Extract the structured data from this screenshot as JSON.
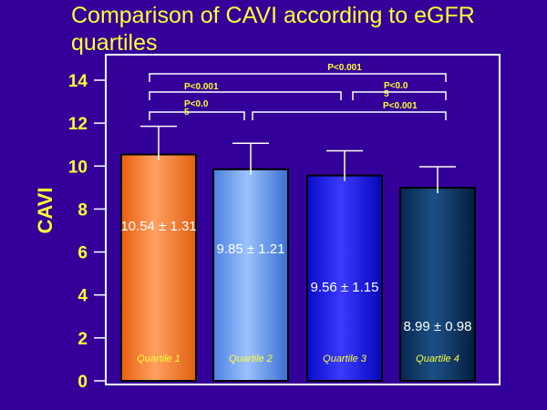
{
  "chart_data": {
    "type": "bar",
    "title": "Comparison of CAVI according to eGFR quartiles",
    "ylabel": "CAVI",
    "xlabel": "",
    "ylim": [
      0,
      14
    ],
    "yticks": [
      "0",
      "2",
      "4",
      "6",
      "8",
      "10",
      "12",
      "14"
    ],
    "categories": [
      "Quartile 1",
      "Quartile 2",
      "Quartile 3",
      "Quartile 4"
    ],
    "values": [
      10.54,
      9.85,
      9.56,
      8.99
    ],
    "errors": [
      1.31,
      1.21,
      1.15,
      0.98
    ],
    "value_labels": [
      "10.54 ± 1.31",
      "9.85 ± 1.21",
      "9.56 ± 1.15",
      "8.99 ± 0.98"
    ],
    "bar_colors": [
      "#ff7f27",
      "#5f95ee",
      "#1a1ae0",
      "#103a6a"
    ],
    "brackets": [
      {
        "from": "Quartile 1",
        "to": "Quartile 4",
        "label": "P<0.001"
      },
      {
        "from": "Quartile 1",
        "to": "Quartile 3",
        "label": "P<0.001"
      },
      {
        "from": "Quartile 3",
        "to": "Quartile 4",
        "label": "P<0.05"
      },
      {
        "from": "Quartile 1",
        "to": "Quartile 2",
        "label": "P<0.05"
      },
      {
        "from": "Quartile 2",
        "to": "Quartile 4",
        "label": "P<0.001"
      }
    ]
  }
}
